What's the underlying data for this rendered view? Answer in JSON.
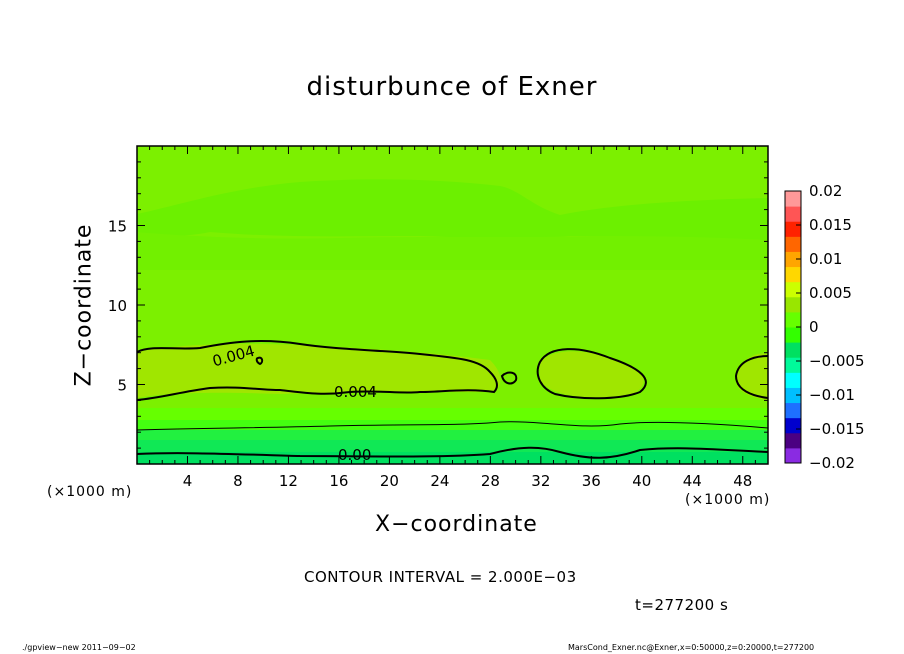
{
  "chart_data": {
    "type": "heatmap",
    "title": "disturbunce of Exner",
    "xlabel": "X−coordinate",
    "ylabel": "Z−coordinate",
    "x_unit": "(×1000 m)",
    "xlim": [
      0,
      50
    ],
    "ylim": [
      0,
      20
    ],
    "x_ticks": [
      4,
      8,
      12,
      16,
      20,
      24,
      28,
      32,
      36,
      40,
      44,
      48
    ],
    "y_ticks": [
      5,
      10,
      15
    ],
    "colorbar": {
      "ticks": [
        "0.02",
        "0.015",
        "0.01",
        "0.005",
        "0",
        "−0.005",
        "−0.01",
        "−0.015",
        "−0.02"
      ],
      "range": [
        -0.02,
        0.02
      ],
      "colors": [
        "#8a2be2",
        "#4b0082",
        "#0000cd",
        "#1e6fff",
        "#00bfff",
        "#00ffff",
        "#00fa9a",
        "#00e060",
        "#33ff00",
        "#66ff00",
        "#99e600",
        "#ccff00",
        "#ffd700",
        "#ffa500",
        "#ff6600",
        "#ff2200",
        "#ff5555",
        "#ff9999"
      ]
    },
    "contour_interval": "CONTOUR INTERVAL = 2.000E−03",
    "contour_labels": [
      "0.004",
      "0.004",
      "0.00"
    ],
    "time": "t=277200 s",
    "grid": false
  },
  "footer": {
    "left": "./gpview−new  2011−09−02",
    "right": "MarsCond_Exner.nc@Exner,x=0:50000,z=0:20000,t=277200"
  }
}
